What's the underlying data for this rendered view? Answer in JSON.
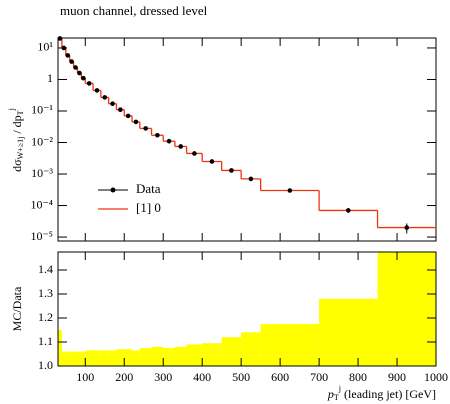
{
  "chart_data": {
    "type": "histogram",
    "title": "muon channel, dressed level",
    "bins": [
      30,
      40,
      50,
      60,
      70,
      80,
      90,
      100,
      120,
      140,
      160,
      180,
      200,
      220,
      240,
      270,
      300,
      330,
      360,
      400,
      450,
      500,
      550,
      700,
      850,
      1000
    ],
    "series": [
      {
        "name": "Data",
        "color": "#000000",
        "values": [
          20,
          10,
          5.8,
          3.7,
          2.4,
          1.6,
          1.1,
          0.75,
          0.45,
          0.27,
          0.17,
          0.11,
          0.07,
          0.045,
          0.028,
          0.017,
          0.011,
          0.0075,
          0.0045,
          0.0025,
          0.0013,
          0.0007,
          0.0003,
          7e-05,
          2e-05
        ],
        "errors": [
          0.6,
          0.3,
          0.17,
          0.11,
          0.07,
          0.05,
          0.03,
          0.02,
          0.013,
          0.008,
          0.005,
          0.003,
          0.002,
          0.0013,
          0.0008,
          0.0005,
          0.0003,
          0.0002,
          0.00013,
          7e-05,
          4e-05,
          2e-05,
          1e-05,
          1.2e-05,
          7e-06
        ]
      },
      {
        "name": "[1] 0",
        "color": "#ee3311",
        "values": [
          20,
          10,
          5.8,
          3.7,
          2.4,
          1.6,
          1.1,
          0.75,
          0.45,
          0.27,
          0.17,
          0.11,
          0.07,
          0.045,
          0.028,
          0.017,
          0.011,
          0.0075,
          0.0045,
          0.0025,
          0.0013,
          0.0007,
          0.0003,
          7e-05,
          2e-05
        ]
      }
    ],
    "ratio_band": {
      "color": "#ffff00",
      "values": [
        1.15,
        1.06,
        1.06,
        1.06,
        1.06,
        1.06,
        1.06,
        1.065,
        1.065,
        1.065,
        1.065,
        1.07,
        1.07,
        1.065,
        1.075,
        1.08,
        1.075,
        1.08,
        1.09,
        1.095,
        1.12,
        1.14,
        1.175,
        1.28,
        1.5
      ]
    },
    "ylabel": {
      "main": "dσ",
      "sub": "W+≥1j",
      "mid": " / dp",
      "sub2": "T",
      "sup": "j"
    },
    "ratio_label": "MC/Data",
    "xlabel": {
      "main": "p",
      "sub": "T",
      "sup": "j",
      "rest": " (leading jet) [GeV]"
    },
    "xlim": [
      30,
      1000
    ],
    "xticks": [
      100,
      200,
      300,
      400,
      500,
      600,
      700,
      800,
      900,
      1000
    ],
    "ylim": [
      7.5e-06,
      20.7
    ],
    "log_y": true,
    "yticks": [
      {
        "value": 1e-05,
        "label": "10⁻⁵"
      },
      {
        "value": 0.0001,
        "label": "10⁻⁴"
      },
      {
        "value": 0.001,
        "label": "10⁻³"
      },
      {
        "value": 0.01,
        "label": "10⁻²"
      },
      {
        "value": 0.1,
        "label": "10⁻¹"
      },
      1,
      {
        "value": 10,
        "label": "10¹"
      }
    ],
    "ratio_ylim": [
      1.0,
      1.475
    ],
    "ratio_yticks": [
      {
        "value": 1.0,
        "label": "1.0"
      },
      1.1,
      1.2,
      1.3,
      1.4
    ],
    "legend": "lower left"
  }
}
